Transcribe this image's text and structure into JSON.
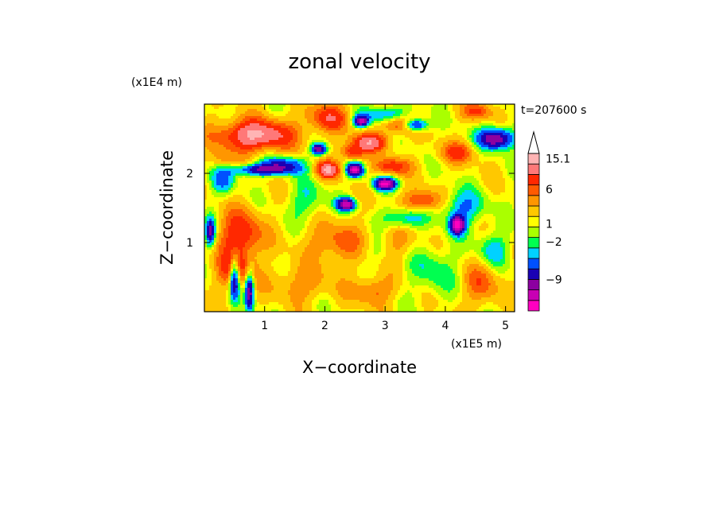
{
  "chart_data": {
    "type": "heatmap",
    "title": "zonal velocity",
    "xlabel": "X−coordinate",
    "ylabel": "Z−coordinate",
    "x_unit": "(x1E5 m)",
    "y_unit": "(x1E4 m)",
    "time_label": "t=207600 s",
    "xlim": [
      0,
      5.15
    ],
    "ylim": [
      0,
      3.0
    ],
    "x_ticks": [
      {
        "value": 1,
        "label": "1"
      },
      {
        "value": 2,
        "label": "2"
      },
      {
        "value": 3,
        "label": "3"
      },
      {
        "value": 4,
        "label": "4"
      },
      {
        "value": 5,
        "label": "5"
      }
    ],
    "y_ticks": [
      {
        "value": 1,
        "label": "1"
      },
      {
        "value": 2,
        "label": "2"
      }
    ],
    "colorbar": {
      "levels": [
        {
          "color": "#ff00c0"
        },
        {
          "color": "#c800b4"
        },
        {
          "color": "#8c00a0"
        },
        {
          "color": "#1a00b4"
        },
        {
          "color": "#0050ff"
        },
        {
          "color": "#00d2ff"
        },
        {
          "color": "#00ff50"
        },
        {
          "color": "#aaff00"
        },
        {
          "color": "#ffff00"
        },
        {
          "color": "#ffc800"
        },
        {
          "color": "#ff9600"
        },
        {
          "color": "#ff5a00"
        },
        {
          "color": "#ff2800"
        },
        {
          "color": "#ff7878"
        },
        {
          "color": "#ffb4b4"
        }
      ],
      "labels": [
        {
          "text": "15.1",
          "index": 14.5
        },
        {
          "text": "6",
          "index": 11.6
        },
        {
          "text": "1",
          "index": 8.3
        },
        {
          "text": "−2",
          "index": 6.6
        },
        {
          "text": "−9",
          "index": 3.0
        }
      ]
    },
    "features": [
      {
        "x": 0.85,
        "z": 2.55,
        "v": 10,
        "sx": 0.6,
        "sz": 0.22
      },
      {
        "x": 0.6,
        "z": 1.1,
        "v": 7,
        "sx": 0.35,
        "sz": 0.35
      },
      {
        "x": 0.5,
        "z": 0.6,
        "v": 6,
        "sx": 0.3,
        "sz": 0.25
      },
      {
        "x": 2.05,
        "z": 2.8,
        "v": 6,
        "sx": 0.35,
        "sz": 0.2
      },
      {
        "x": 2.05,
        "z": 2.05,
        "v": 9,
        "sx": 0.2,
        "sz": 0.12
      },
      {
        "x": 2.75,
        "z": 2.45,
        "v": 8,
        "sx": 0.3,
        "sz": 0.13
      },
      {
        "x": 3.3,
        "z": 2.7,
        "v": 7,
        "sx": 0.3,
        "sz": 0.12
      },
      {
        "x": 2.45,
        "z": 2.3,
        "v": 6,
        "sx": 0.2,
        "sz": 0.12
      },
      {
        "x": 3.1,
        "z": 2.1,
        "v": 6,
        "sx": 0.3,
        "sz": 0.12
      },
      {
        "x": 3.6,
        "z": 1.6,
        "v": 6,
        "sx": 0.3,
        "sz": 0.15
      },
      {
        "x": 4.2,
        "z": 2.3,
        "v": 5,
        "sx": 0.3,
        "sz": 0.15
      },
      {
        "x": 4.55,
        "z": 2.9,
        "v": 5,
        "sx": 0.25,
        "sz": 0.12
      },
      {
        "x": 2.2,
        "z": 1.0,
        "v": 4,
        "sx": 0.5,
        "sz": 0.3
      },
      {
        "x": 2.8,
        "z": 0.3,
        "v": 4,
        "sx": 0.35,
        "sz": 0.2
      },
      {
        "x": 4.6,
        "z": 0.4,
        "v": 4,
        "sx": 0.3,
        "sz": 0.3
      },
      {
        "x": 3.2,
        "z": 1.0,
        "v": 3,
        "sx": 0.3,
        "sz": 0.25
      },
      {
        "x": 1.6,
        "z": 0.4,
        "v": 3,
        "sx": 0.5,
        "sz": 0.25
      },
      {
        "x": 2.6,
        "z": 2.75,
        "v": -12,
        "sx": 0.12,
        "sz": 0.08
      },
      {
        "x": 2.5,
        "z": 2.05,
        "v": -14,
        "sx": 0.14,
        "sz": 0.1
      },
      {
        "x": 3.0,
        "z": 1.85,
        "v": -14,
        "sx": 0.18,
        "sz": 0.09
      },
      {
        "x": 2.35,
        "z": 1.55,
        "v": -13,
        "sx": 0.15,
        "sz": 0.09
      },
      {
        "x": 3.5,
        "z": 2.7,
        "v": -12,
        "sx": 0.2,
        "sz": 0.09
      },
      {
        "x": 4.2,
        "z": 1.25,
        "v": -14,
        "sx": 0.12,
        "sz": 0.13
      },
      {
        "x": 1.9,
        "z": 2.35,
        "v": -12,
        "sx": 0.12,
        "sz": 0.08
      },
      {
        "x": 1.0,
        "z": 2.05,
        "v": -10,
        "sx": 0.5,
        "sz": 0.08
      },
      {
        "x": 4.85,
        "z": 2.5,
        "v": -12,
        "sx": 0.3,
        "sz": 0.15
      },
      {
        "x": 0.5,
        "z": 0.5,
        "v": -12,
        "sx": 0.08,
        "sz": 0.3
      },
      {
        "x": 0.75,
        "z": 0.3,
        "v": -11,
        "sx": 0.07,
        "sz": 0.3
      },
      {
        "x": 0.1,
        "z": 1.15,
        "v": -10,
        "sx": 0.08,
        "sz": 0.2
      },
      {
        "x": 3.0,
        "z": 2.85,
        "v": -5,
        "sx": 0.4,
        "sz": 0.12
      },
      {
        "x": 3.3,
        "z": 1.35,
        "v": -5,
        "sx": 0.35,
        "sz": 0.15
      },
      {
        "x": 4.3,
        "z": 1.5,
        "v": -5,
        "sx": 0.35,
        "sz": 0.25
      },
      {
        "x": 0.3,
        "z": 1.9,
        "v": -5,
        "sx": 0.2,
        "sz": 0.2
      },
      {
        "x": 4.8,
        "z": 0.9,
        "v": -4,
        "sx": 0.25,
        "sz": 0.25
      },
      {
        "x": 1.3,
        "z": 2.15,
        "v": -6,
        "sx": 0.35,
        "sz": 0.1
      },
      {
        "x": 1.7,
        "z": 1.6,
        "v": -3,
        "sx": 0.3,
        "sz": 0.3
      },
      {
        "x": 3.8,
        "z": 0.6,
        "v": -3,
        "sx": 0.4,
        "sz": 0.35
      },
      {
        "x": 2.9,
        "z": 0.9,
        "v": -2,
        "sx": 0.3,
        "sz": 0.2
      },
      {
        "x": 0.3,
        "z": 2.2,
        "v": 3,
        "sx": 0.2,
        "sz": 0.15
      }
    ]
  }
}
